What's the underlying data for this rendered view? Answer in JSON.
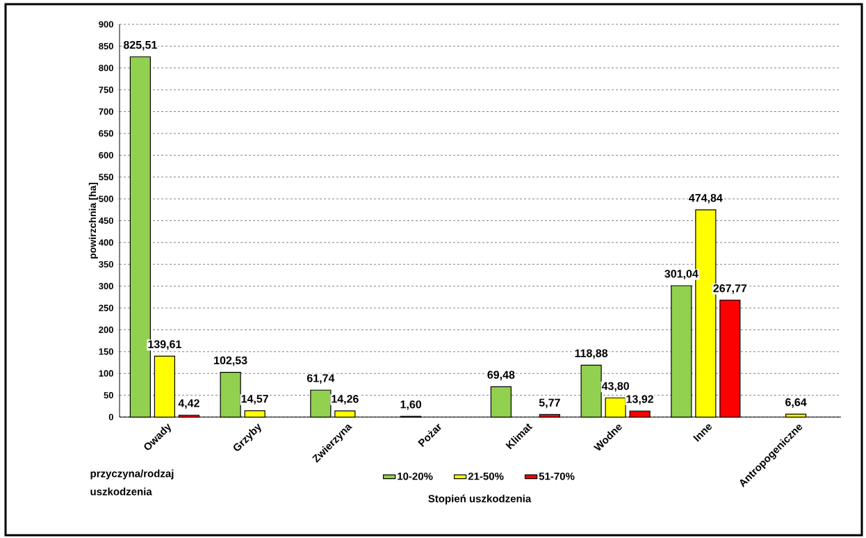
{
  "chart_data": {
    "type": "bar",
    "xlabel": "przyczyna/rodzaj uszkodzenia",
    "ylabel": "powirzchnia [ha]",
    "legend_title": "Stopień uszkodzenia",
    "categories": [
      "Owady",
      "Grzyby",
      "Zwierzyna",
      "Pożar",
      "Klimat",
      "Wodne",
      "Inne",
      "Antropogeniczne"
    ],
    "series": [
      {
        "name": "10-20%",
        "color": "#92d050",
        "values": [
          825.51,
          102.53,
          61.74,
          1.6,
          69.48,
          118.88,
          301.04,
          null
        ],
        "value_labels": [
          "825,51",
          "102,53",
          "61,74",
          "1,60",
          "69,48",
          "118,88",
          "301,04",
          null
        ]
      },
      {
        "name": "21-50%",
        "color": "#ffff00",
        "values": [
          139.61,
          14.57,
          14.26,
          null,
          null,
          43.8,
          474.84,
          6.64
        ],
        "value_labels": [
          "139,61",
          "14,57",
          "14,26",
          null,
          null,
          "43,80",
          "474,84",
          "6,64"
        ]
      },
      {
        "name": "51-70%",
        "color": "#ff0000",
        "values": [
          4.42,
          null,
          null,
          null,
          5.77,
          13.92,
          267.77,
          null
        ],
        "value_labels": [
          "4,42",
          null,
          null,
          null,
          "5,77",
          "13,92",
          "267,77",
          null
        ]
      }
    ],
    "ylim": [
      0,
      900
    ],
    "yticks": [
      0,
      50,
      100,
      150,
      200,
      250,
      300,
      350,
      400,
      450,
      500,
      550,
      600,
      650,
      700,
      750,
      800,
      850,
      900
    ],
    "grid": "y",
    "legend": "bottom"
  }
}
